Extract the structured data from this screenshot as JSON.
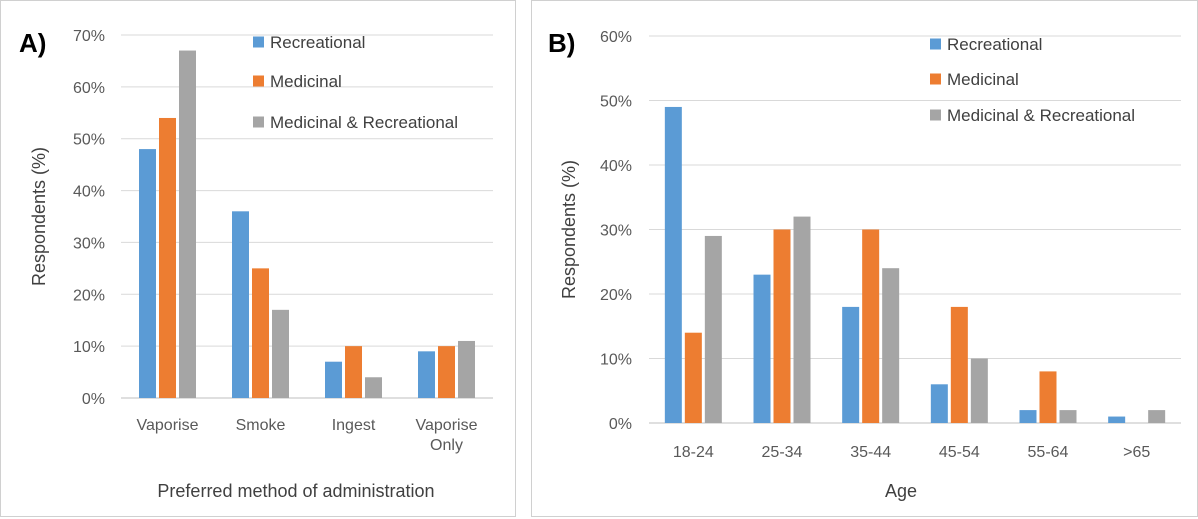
{
  "chart_data": [
    {
      "type": "bar",
      "panel_label": "A)",
      "categories": [
        [
          "Vaporise"
        ],
        [
          "Smoke"
        ],
        [
          "Ingest"
        ],
        [
          "Vaporise",
          "Only"
        ]
      ],
      "series": [
        {
          "name": "Recreational",
          "color": "#5b9bd5",
          "values": [
            48,
            36,
            7,
            9
          ]
        },
        {
          "name": "Medicinal",
          "color": "#ed7d31",
          "values": [
            54,
            25,
            10,
            10
          ]
        },
        {
          "name": "Medicinal & Recreational",
          "color": "#a5a5a5",
          "values": [
            67,
            17,
            4,
            11
          ]
        }
      ],
      "xlabel": "Preferred method of administration",
      "ylabel": "Respondents (%)",
      "ylim": [
        0,
        70
      ],
      "yticks": [
        "0%",
        "10%",
        "20%",
        "30%",
        "40%",
        "50%",
        "60%",
        "70%"
      ],
      "grid": true,
      "legend": "top-right"
    },
    {
      "type": "bar",
      "panel_label": "B)",
      "categories": [
        [
          "18-24"
        ],
        [
          "25-34"
        ],
        [
          "35-44"
        ],
        [
          "45-54"
        ],
        [
          "55-64"
        ],
        [
          ">65"
        ]
      ],
      "series": [
        {
          "name": "Recreational",
          "color": "#5b9bd5",
          "values": [
            49,
            23,
            18,
            6,
            2,
            1
          ]
        },
        {
          "name": "Medicinal",
          "color": "#ed7d31",
          "values": [
            14,
            30,
            30,
            18,
            8,
            0
          ]
        },
        {
          "name": "Medicinal & Recreational",
          "color": "#a5a5a5",
          "values": [
            29,
            32,
            24,
            10,
            2,
            2
          ]
        }
      ],
      "xlabel": "Age",
      "ylabel": "Respondents (%)",
      "ylim": [
        0,
        60
      ],
      "yticks": [
        "0%",
        "10%",
        "20%",
        "30%",
        "40%",
        "50%",
        "60%"
      ],
      "grid": true,
      "legend": "top-right"
    }
  ]
}
